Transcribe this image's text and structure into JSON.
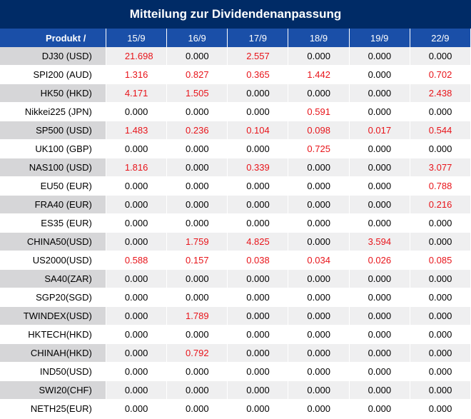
{
  "title": "Mitteilung zur Dividendenanpassung",
  "columns": [
    "Produkt /",
    "15/9",
    "16/9",
    "17/9",
    "18/9",
    "19/9",
    "22/9"
  ],
  "rows": [
    {
      "name": "DJ30 (USD)",
      "values": [
        "21.698",
        "0.000",
        "2.557",
        "0.000",
        "0.000",
        "0.000"
      ]
    },
    {
      "name": "SPI200 (AUD)",
      "values": [
        "1.316",
        "0.827",
        "0.365",
        "1.442",
        "0.000",
        "0.702"
      ]
    },
    {
      "name": "HK50 (HKD)",
      "values": [
        "4.171",
        "1.505",
        "0.000",
        "0.000",
        "0.000",
        "2.438"
      ]
    },
    {
      "name": "Nikkei225 (JPN)",
      "values": [
        "0.000",
        "0.000",
        "0.000",
        "0.591",
        "0.000",
        "0.000"
      ]
    },
    {
      "name": "SP500 (USD)",
      "values": [
        "1.483",
        "0.236",
        "0.104",
        "0.098",
        "0.017",
        "0.544"
      ]
    },
    {
      "name": "UK100 (GBP)",
      "values": [
        "0.000",
        "0.000",
        "0.000",
        "0.725",
        "0.000",
        "0.000"
      ]
    },
    {
      "name": "NAS100 (USD)",
      "values": [
        "1.816",
        "0.000",
        "0.339",
        "0.000",
        "0.000",
        "3.077"
      ]
    },
    {
      "name": "EU50 (EUR)",
      "values": [
        "0.000",
        "0.000",
        "0.000",
        "0.000",
        "0.000",
        "0.788"
      ]
    },
    {
      "name": "FRA40 (EUR)",
      "values": [
        "0.000",
        "0.000",
        "0.000",
        "0.000",
        "0.000",
        "0.216"
      ]
    },
    {
      "name": "ES35 (EUR)",
      "values": [
        "0.000",
        "0.000",
        "0.000",
        "0.000",
        "0.000",
        "0.000"
      ]
    },
    {
      "name": "CHINA50(USD)",
      "values": [
        "0.000",
        "1.759",
        "4.825",
        "0.000",
        "3.594",
        "0.000"
      ]
    },
    {
      "name": "US2000(USD)",
      "values": [
        "0.588",
        "0.157",
        "0.038",
        "0.034",
        "0.026",
        "0.085"
      ]
    },
    {
      "name": "SA40(ZAR)",
      "values": [
        "0.000",
        "0.000",
        "0.000",
        "0.000",
        "0.000",
        "0.000"
      ]
    },
    {
      "name": "SGP20(SGD)",
      "values": [
        "0.000",
        "0.000",
        "0.000",
        "0.000",
        "0.000",
        "0.000"
      ]
    },
    {
      "name": "TWINDEX(USD)",
      "values": [
        "0.000",
        "1.789",
        "0.000",
        "0.000",
        "0.000",
        "0.000"
      ]
    },
    {
      "name": "HKTECH(HKD)",
      "values": [
        "0.000",
        "0.000",
        "0.000",
        "0.000",
        "0.000",
        "0.000"
      ]
    },
    {
      "name": "CHINAH(HKD)",
      "values": [
        "0.000",
        "0.792",
        "0.000",
        "0.000",
        "0.000",
        "0.000"
      ]
    },
    {
      "name": "IND50(USD)",
      "values": [
        "0.000",
        "0.000",
        "0.000",
        "0.000",
        "0.000",
        "0.000"
      ]
    },
    {
      "name": "SWI20(CHF)",
      "values": [
        "0.000",
        "0.000",
        "0.000",
        "0.000",
        "0.000",
        "0.000"
      ]
    },
    {
      "name": "NETH25(EUR)",
      "values": [
        "0.000",
        "0.000",
        "0.000",
        "0.000",
        "0.000",
        "0.000"
      ]
    }
  ],
  "colors": {
    "title_bg": "#002b66",
    "header_bg": "#1a4fa8",
    "shade_name": "#d6d6d8",
    "row_shade": "#efeff0",
    "row_plain": "#ffffff",
    "positive": "#e8141a",
    "zero": "#000000"
  }
}
